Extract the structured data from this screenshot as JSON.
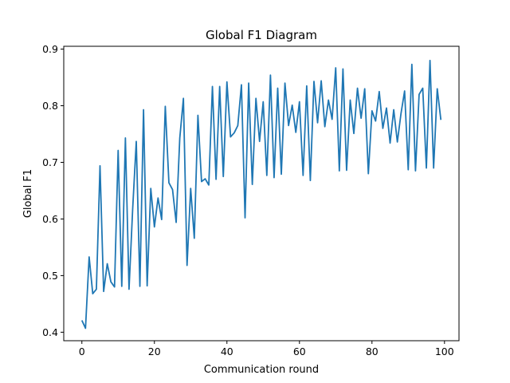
{
  "chart_data": {
    "type": "line",
    "title": "Global F1 Diagram",
    "xlabel": "Communication round",
    "ylabel": "Global F1",
    "xlim": [
      -5,
      104
    ],
    "ylim": [
      0.385,
      0.905
    ],
    "xticks": [
      0,
      20,
      40,
      60,
      80,
      100
    ],
    "yticks": [
      0.4,
      0.5,
      0.6,
      0.7,
      0.8,
      0.9
    ],
    "xtick_labels": [
      "0",
      "20",
      "40",
      "60",
      "80",
      "100"
    ],
    "ytick_labels": [
      "0.4",
      "0.5",
      "0.6",
      "0.7",
      "0.8",
      "0.9"
    ],
    "grid": false,
    "series_color": "#1f77b4",
    "series": [
      {
        "x": [
          0,
          1,
          2,
          3,
          4,
          5,
          6,
          7,
          8,
          9,
          10,
          11,
          12,
          13,
          14,
          15,
          16,
          17,
          18,
          19,
          20,
          21,
          22,
          23,
          24,
          25,
          26,
          27,
          28,
          29,
          30,
          31,
          32,
          33,
          34,
          35,
          36,
          37,
          38,
          39,
          40,
          41,
          42,
          43,
          44,
          45,
          46,
          47,
          48,
          49,
          50,
          51,
          52,
          53,
          54,
          55,
          56,
          57,
          58,
          59,
          60,
          61,
          62,
          63,
          64,
          65,
          66,
          67,
          68,
          69,
          70,
          71,
          72,
          73,
          74,
          75,
          76,
          77,
          78,
          79,
          80,
          81,
          82,
          83,
          84,
          85,
          86,
          87,
          88,
          89,
          90,
          91,
          92,
          93,
          94,
          95,
          96,
          97,
          98,
          99
        ],
        "values": [
          0.421,
          0.407,
          0.533,
          0.468,
          0.476,
          0.694,
          0.472,
          0.521,
          0.489,
          0.48,
          0.721,
          0.481,
          0.743,
          0.476,
          0.617,
          0.737,
          0.481,
          0.793,
          0.482,
          0.654,
          0.586,
          0.637,
          0.599,
          0.799,
          0.664,
          0.652,
          0.594,
          0.743,
          0.813,
          0.518,
          0.654,
          0.566,
          0.783,
          0.666,
          0.671,
          0.66,
          0.834,
          0.67,
          0.834,
          0.675,
          0.842,
          0.745,
          0.752,
          0.765,
          0.837,
          0.602,
          0.84,
          0.661,
          0.813,
          0.737,
          0.807,
          0.677,
          0.854,
          0.673,
          0.831,
          0.679,
          0.84,
          0.765,
          0.801,
          0.753,
          0.807,
          0.677,
          0.835,
          0.668,
          0.843,
          0.77,
          0.844,
          0.763,
          0.81,
          0.776,
          0.867,
          0.685,
          0.865,
          0.686,
          0.81,
          0.751,
          0.831,
          0.778,
          0.83,
          0.68,
          0.791,
          0.773,
          0.825,
          0.76,
          0.796,
          0.734,
          0.793,
          0.736,
          0.786,
          0.826,
          0.687,
          0.873,
          0.685,
          0.82,
          0.831,
          0.69,
          0.88,
          0.69,
          0.83,
          0.775
        ]
      }
    ]
  }
}
